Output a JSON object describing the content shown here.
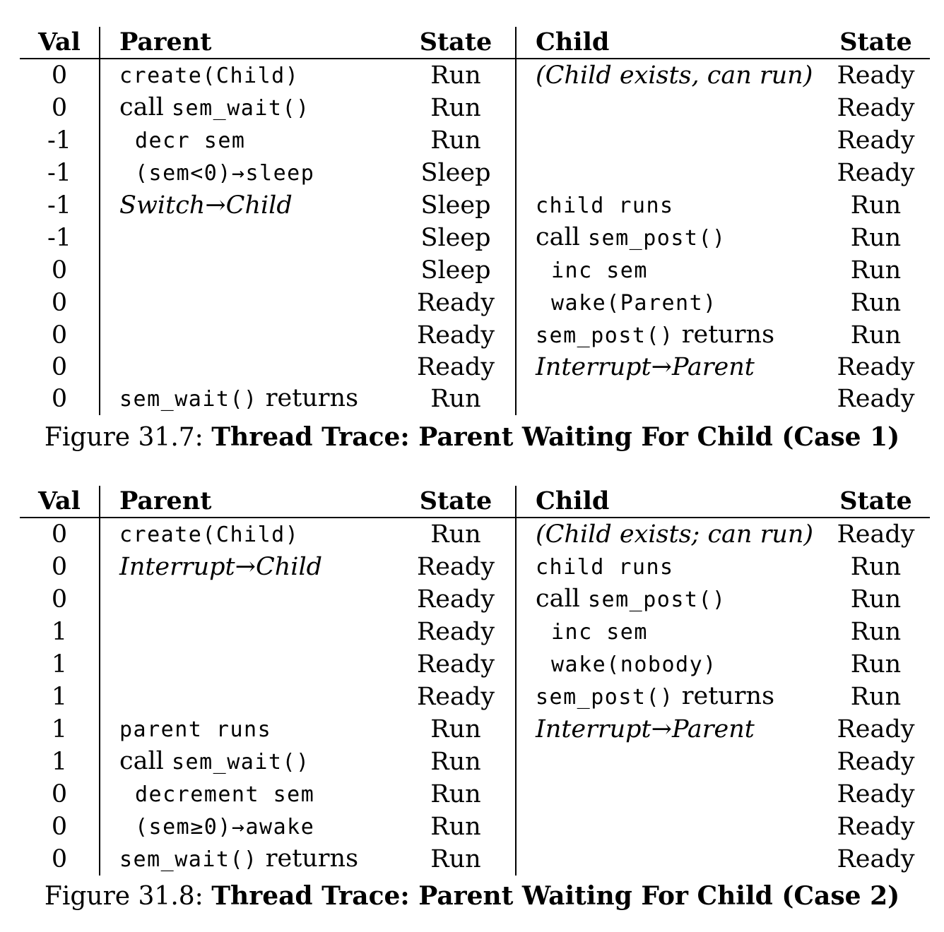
{
  "headers": {
    "val": "Val",
    "parent": "Parent",
    "parent_state": "State",
    "child": "Child",
    "child_state": "State"
  },
  "figures": [
    {
      "caption_label": "Figure 31.7:",
      "caption_title": "Thread Trace: Parent Waiting For Child (Case 1)",
      "rows": [
        {
          "val": "0",
          "parent": [
            {
              "t": "create(Child)",
              "s": "code"
            }
          ],
          "parent_state": "Run",
          "child": [
            {
              "t": "(Child exists, can run)",
              "s": "emph"
            }
          ],
          "child_state": "Ready"
        },
        {
          "val": "0",
          "parent": [
            {
              "t": "call ",
              "s": "prose"
            },
            {
              "t": "sem_wait()",
              "s": "code"
            }
          ],
          "parent_state": "Run",
          "child": [],
          "child_state": "Ready"
        },
        {
          "val": "-1",
          "parent": [
            {
              "t": "decr sem",
              "s": "code indent"
            }
          ],
          "parent_state": "Run",
          "child": [],
          "child_state": "Ready"
        },
        {
          "val": "-1",
          "parent": [
            {
              "t": "(sem<0)→sleep",
              "s": "code indent"
            }
          ],
          "parent_state": "Sleep",
          "child": [],
          "child_state": "Ready"
        },
        {
          "val": "-1",
          "parent": [
            {
              "t": "Switch→Child",
              "s": "emph"
            }
          ],
          "parent_state": "Sleep",
          "child": [
            {
              "t": "child runs",
              "s": "code"
            }
          ],
          "child_state": "Run"
        },
        {
          "val": "-1",
          "parent": [],
          "parent_state": "Sleep",
          "child": [
            {
              "t": "call ",
              "s": "prose"
            },
            {
              "t": "sem_post()",
              "s": "code"
            }
          ],
          "child_state": "Run"
        },
        {
          "val": "0",
          "parent": [],
          "parent_state": "Sleep",
          "child": [
            {
              "t": "inc sem",
              "s": "code indent"
            }
          ],
          "child_state": "Run"
        },
        {
          "val": "0",
          "parent": [],
          "parent_state": "Ready",
          "child": [
            {
              "t": "wake(Parent)",
              "s": "code indent"
            }
          ],
          "child_state": "Run"
        },
        {
          "val": "0",
          "parent": [],
          "parent_state": "Ready",
          "child": [
            {
              "t": "sem_post()",
              "s": "code"
            },
            {
              "t": " returns",
              "s": "prose"
            }
          ],
          "child_state": "Run"
        },
        {
          "val": "0",
          "parent": [],
          "parent_state": "Ready",
          "child": [
            {
              "t": "Interrupt→Parent",
              "s": "emph"
            }
          ],
          "child_state": "Ready"
        },
        {
          "val": "0",
          "parent": [
            {
              "t": "sem_wait()",
              "s": "code"
            },
            {
              "t": " returns",
              "s": "prose"
            }
          ],
          "parent_state": "Run",
          "child": [],
          "child_state": "Ready"
        }
      ]
    },
    {
      "caption_label": "Figure 31.8:",
      "caption_title": "Thread Trace: Parent Waiting For Child (Case 2)",
      "rows": [
        {
          "val": "0",
          "parent": [
            {
              "t": "create(Child)",
              "s": "code"
            }
          ],
          "parent_state": "Run",
          "child": [
            {
              "t": "(Child exists; can run)",
              "s": "emph"
            }
          ],
          "child_state": "Ready"
        },
        {
          "val": "0",
          "parent": [
            {
              "t": "Interrupt→Child",
              "s": "emph"
            }
          ],
          "parent_state": "Ready",
          "child": [
            {
              "t": "child runs",
              "s": "code"
            }
          ],
          "child_state": "Run"
        },
        {
          "val": "0",
          "parent": [],
          "parent_state": "Ready",
          "child": [
            {
              "t": "call ",
              "s": "prose"
            },
            {
              "t": "sem_post()",
              "s": "code"
            }
          ],
          "child_state": "Run"
        },
        {
          "val": "1",
          "parent": [],
          "parent_state": "Ready",
          "child": [
            {
              "t": "inc sem",
              "s": "code indent"
            }
          ],
          "child_state": "Run"
        },
        {
          "val": "1",
          "parent": [],
          "parent_state": "Ready",
          "child": [
            {
              "t": "wake(nobody)",
              "s": "code indent"
            }
          ],
          "child_state": "Run"
        },
        {
          "val": "1",
          "parent": [],
          "parent_state": "Ready",
          "child": [
            {
              "t": "sem_post()",
              "s": "code"
            },
            {
              "t": " returns",
              "s": "prose"
            }
          ],
          "child_state": "Run"
        },
        {
          "val": "1",
          "parent": [
            {
              "t": "parent runs",
              "s": "code"
            }
          ],
          "parent_state": "Run",
          "child": [
            {
              "t": "Interrupt→Parent",
              "s": "emph"
            }
          ],
          "child_state": "Ready"
        },
        {
          "val": "1",
          "parent": [
            {
              "t": "call ",
              "s": "prose"
            },
            {
              "t": "sem_wait()",
              "s": "code"
            }
          ],
          "parent_state": "Run",
          "child": [],
          "child_state": "Ready"
        },
        {
          "val": "0",
          "parent": [
            {
              "t": "decrement sem",
              "s": "code indent"
            }
          ],
          "parent_state": "Run",
          "child": [],
          "child_state": "Ready"
        },
        {
          "val": "0",
          "parent": [
            {
              "t": "(sem≥0)→awake",
              "s": "code indent"
            }
          ],
          "parent_state": "Run",
          "child": [],
          "child_state": "Ready"
        },
        {
          "val": "0",
          "parent": [
            {
              "t": "sem_wait()",
              "s": "code"
            },
            {
              "t": " returns",
              "s": "prose"
            }
          ],
          "parent_state": "Run",
          "child": [],
          "child_state": "Ready"
        }
      ]
    }
  ]
}
